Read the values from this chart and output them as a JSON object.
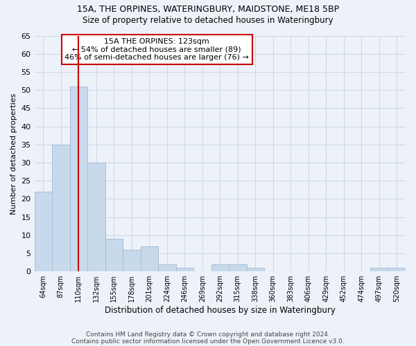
{
  "title1": "15A, THE ORPINES, WATERINGBURY, MAIDSTONE, ME18 5BP",
  "title2": "Size of property relative to detached houses in Wateringbury",
  "xlabel": "Distribution of detached houses by size in Wateringbury",
  "ylabel": "Number of detached properties",
  "footnote1": "Contains HM Land Registry data © Crown copyright and database right 2024.",
  "footnote2": "Contains public sector information licensed under the Open Government Licence v3.0.",
  "categories": [
    "64sqm",
    "87sqm",
    "110sqm",
    "132sqm",
    "155sqm",
    "178sqm",
    "201sqm",
    "224sqm",
    "246sqm",
    "269sqm",
    "292sqm",
    "315sqm",
    "338sqm",
    "360sqm",
    "383sqm",
    "406sqm",
    "429sqm",
    "452sqm",
    "474sqm",
    "497sqm",
    "520sqm"
  ],
  "values": [
    22,
    35,
    51,
    30,
    9,
    6,
    7,
    2,
    1,
    0,
    2,
    2,
    1,
    0,
    0,
    0,
    0,
    0,
    0,
    1,
    1
  ],
  "bar_color": "#c8d9ec",
  "bar_edge_color": "#a8bdd8",
  "grid_color": "#d0d8e8",
  "background_color": "#edf2f9",
  "annotation_text": "15A THE ORPINES: 123sqm\n← 54% of detached houses are smaller (89)\n46% of semi-detached houses are larger (76) →",
  "annotation_box_color": "#ffffff",
  "annotation_box_edge_color": "#cc0000",
  "vline_x_index": 2,
  "vline_color": "#cc0000",
  "ylim": [
    0,
    65
  ],
  "yticks": [
    0,
    5,
    10,
    15,
    20,
    25,
    30,
    35,
    40,
    45,
    50,
    55,
    60,
    65
  ]
}
